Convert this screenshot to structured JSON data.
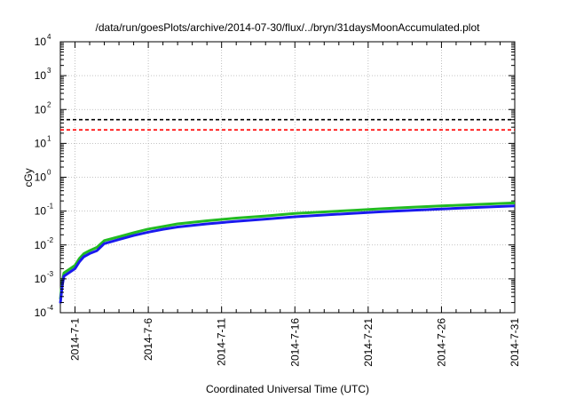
{
  "chart_data": {
    "type": "line",
    "title": "/data/run/goesPlots/archive/2014-07-30/flux/../bryn/31daysMoonAccumulated.plot",
    "xlabel": "Coordinated Universal Time (UTC)",
    "ylabel": "cGy",
    "y_scale": "log",
    "ylim": [
      0.0001,
      10000
    ],
    "xlim": [
      "2014-06-30",
      "2014-07-31"
    ],
    "x_ticks": [
      "2014-7-1",
      "2014-7-6",
      "2014-7-11",
      "2014-7-16",
      "2014-7-21",
      "2014-7-26",
      "2014-7-31"
    ],
    "y_ticks": [
      {
        "value": 0.0001,
        "base": "10",
        "exp": "-4"
      },
      {
        "value": 0.001,
        "base": "10",
        "exp": "-3"
      },
      {
        "value": 0.01,
        "base": "10",
        "exp": "-2"
      },
      {
        "value": 0.1,
        "base": "10",
        "exp": "-1"
      },
      {
        "value": 1,
        "base": "10",
        "exp": "0"
      },
      {
        "value": 10,
        "base": "10",
        "exp": "1"
      },
      {
        "value": 100,
        "base": "10",
        "exp": "2"
      },
      {
        "value": 1000,
        "base": "10",
        "exp": "3"
      },
      {
        "value": 10000,
        "base": "10",
        "exp": "4"
      }
    ],
    "grid": true,
    "hlines": [
      {
        "value": 50,
        "color": "#000000",
        "style": "dashed"
      },
      {
        "value": 25,
        "color": "#ff0000",
        "style": "dashed"
      }
    ],
    "series": [
      {
        "color": "#22bb22",
        "x": [
          "2014-06-30",
          "2014-06-30",
          "2014-06-30",
          "2014-07-01",
          "2014-07-01",
          "2014-07-01",
          "2014-07-02",
          "2014-07-02",
          "2014-07-03",
          "2014-07-04",
          "2014-07-05",
          "2014-07-06",
          "2014-07-07",
          "2014-07-08",
          "2014-07-10",
          "2014-07-12",
          "2014-07-14",
          "2014-07-16",
          "2014-07-18",
          "2014-07-20",
          "2014-07-22",
          "2014-07-24",
          "2014-07-26",
          "2014-07-28",
          "2014-07-31"
        ],
        "values": [
          0.00025,
          0.0008,
          0.0015,
          0.0025,
          0.004,
          0.0055,
          0.0068,
          0.0085,
          0.0135,
          0.0175,
          0.023,
          0.0295,
          0.035,
          0.042,
          0.052,
          0.062,
          0.072,
          0.085,
          0.095,
          0.106,
          0.118,
          0.13,
          0.142,
          0.155,
          0.175
        ]
      },
      {
        "color": "#1a1aee",
        "x": [
          "2014-06-30",
          "2014-06-30",
          "2014-06-30",
          "2014-07-01",
          "2014-07-01",
          "2014-07-01",
          "2014-07-02",
          "2014-07-02",
          "2014-07-03",
          "2014-07-04",
          "2014-07-05",
          "2014-07-06",
          "2014-07-07",
          "2014-07-08",
          "2014-07-10",
          "2014-07-12",
          "2014-07-14",
          "2014-07-16",
          "2014-07-18",
          "2014-07-20",
          "2014-07-22",
          "2014-07-24",
          "2014-07-26",
          "2014-07-28",
          "2014-07-31"
        ],
        "values": [
          0.00019,
          0.0006,
          0.0012,
          0.002,
          0.0032,
          0.0045,
          0.0056,
          0.0068,
          0.011,
          0.0145,
          0.019,
          0.024,
          0.029,
          0.034,
          0.042,
          0.05,
          0.058,
          0.068,
          0.077,
          0.086,
          0.096,
          0.106,
          0.116,
          0.126,
          0.142
        ]
      }
    ]
  }
}
